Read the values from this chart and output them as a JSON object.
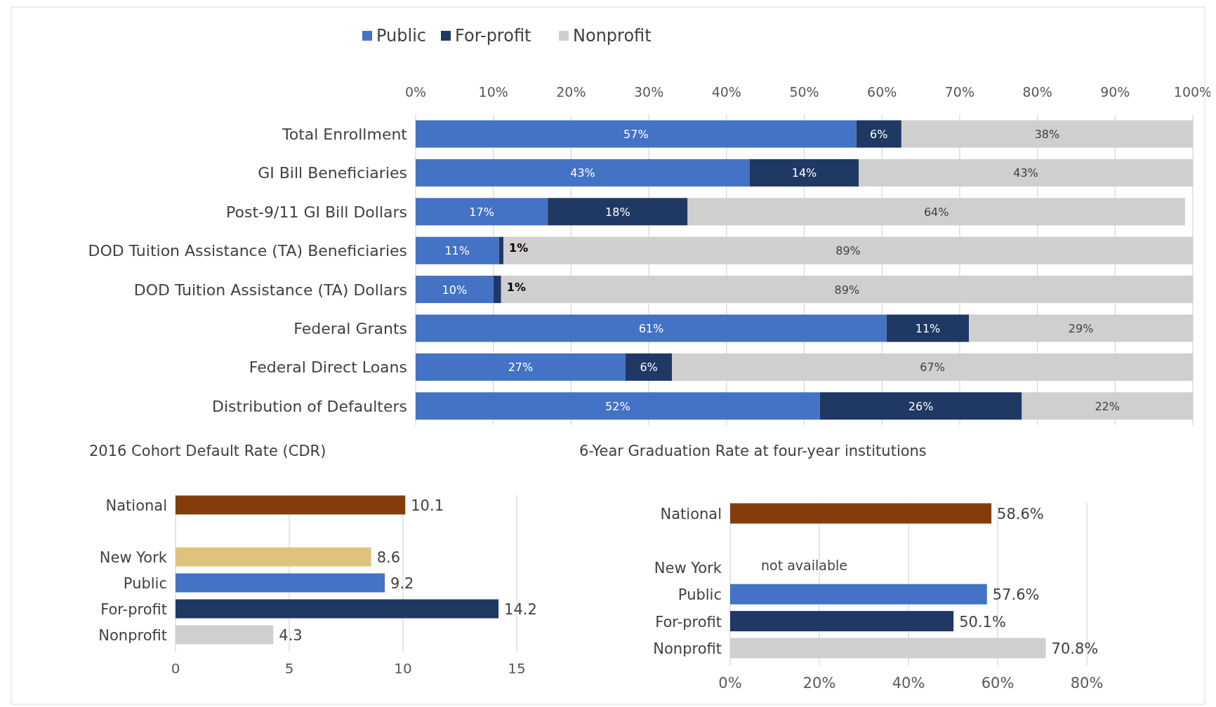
{
  "chart_data": [
    {
      "type": "bar",
      "orientation": "horizontal",
      "stacked": true,
      "legend": "top",
      "grid": "x",
      "categories": [
        "Total Enrollment",
        "GI Bill Beneficiaries",
        "Post-9/11 GI Bill Dollars",
        "DOD Tuition Assistance (TA) Beneficiaries",
        "DOD Tuition Assistance (TA) Dollars",
        "Federal Grants",
        "Federal Direct Loans",
        "Distribution of Defaulters"
      ],
      "xlim": [
        0,
        100
      ],
      "xticks": [
        {
          "value": 0,
          "label": "0%"
        },
        {
          "value": 10,
          "label": "10%"
        },
        {
          "value": 20,
          "label": "20%"
        },
        {
          "value": 30,
          "label": "30%"
        },
        {
          "value": 40,
          "label": "40%"
        },
        {
          "value": 50,
          "label": "50%"
        },
        {
          "value": 60,
          "label": "60%"
        },
        {
          "value": 70,
          "label": "70%"
        },
        {
          "value": 80,
          "label": "80%"
        },
        {
          "value": 90,
          "label": "90%"
        },
        {
          "value": 100,
          "label": "100%"
        }
      ],
      "series": [
        {
          "name": "Public",
          "color": "#4472c4",
          "values": [
            56.7,
            43,
            17,
            10.7,
            10,
            60.6,
            27,
            52
          ],
          "value_labels": [
            "57%",
            "43%",
            "17%",
            "11%",
            "10%",
            "61%",
            "27%",
            "52%"
          ]
        },
        {
          "name": "For-profit",
          "color": "#1f3864",
          "values": [
            5.8,
            14,
            18,
            0.6,
            1,
            10.6,
            6,
            26
          ],
          "value_labels": [
            "6%",
            "14%",
            "18%",
            "1%",
            "1%",
            "11%",
            "6%",
            "26%"
          ]
        },
        {
          "name": "Nonprofit",
          "color": "#d0cece",
          "values": [
            37.5,
            43,
            64,
            88.7,
            89,
            28.8,
            67,
            22
          ],
          "value_labels": [
            "38%",
            "43%",
            "64%",
            "89%",
            "89%",
            "29%",
            "67%",
            "22%"
          ]
        }
      ]
    },
    {
      "type": "bar",
      "orientation": "horizontal",
      "title": "2016 Cohort Default Rate (CDR)",
      "grid": "x",
      "data_labels": true,
      "categories": [
        "National",
        null,
        "New York",
        "Public",
        "For-profit",
        "Nonprofit"
      ],
      "values": [
        10.1,
        null,
        8.6,
        9.2,
        14.2,
        4.3
      ],
      "colors": [
        "#843c0c",
        null,
        "#dfc27d",
        "#4472c4",
        "#1f3864",
        "#d0cece"
      ],
      "xlim": [
        0,
        15
      ],
      "xticks": [
        0,
        5,
        10,
        15
      ]
    },
    {
      "type": "bar",
      "orientation": "horizontal",
      "title": "6-Year Graduation Rate at four-year institutions",
      "grid": "x",
      "categories": [
        "National",
        null,
        "New York",
        "Public",
        "For-profit",
        "Nonprofit"
      ],
      "values": [
        58.6,
        null,
        null,
        57.6,
        50.1,
        70.8
      ],
      "value_labels": [
        "58.6%",
        null,
        null,
        "57.6%",
        "50.1%",
        "70.8%"
      ],
      "colors": [
        "#843c0c",
        null,
        null,
        "#4472c4",
        "#1f3864",
        "#d0cece"
      ],
      "xlim": [
        0,
        80
      ],
      "xticks": [
        {
          "value": 0,
          "label": "0%"
        },
        {
          "value": 20,
          "label": "20%"
        },
        {
          "value": 40,
          "label": "40%"
        },
        {
          "value": 60,
          "label": "60%"
        },
        {
          "value": 80,
          "label": "80%"
        }
      ],
      "annotations": [
        "not available"
      ]
    }
  ]
}
